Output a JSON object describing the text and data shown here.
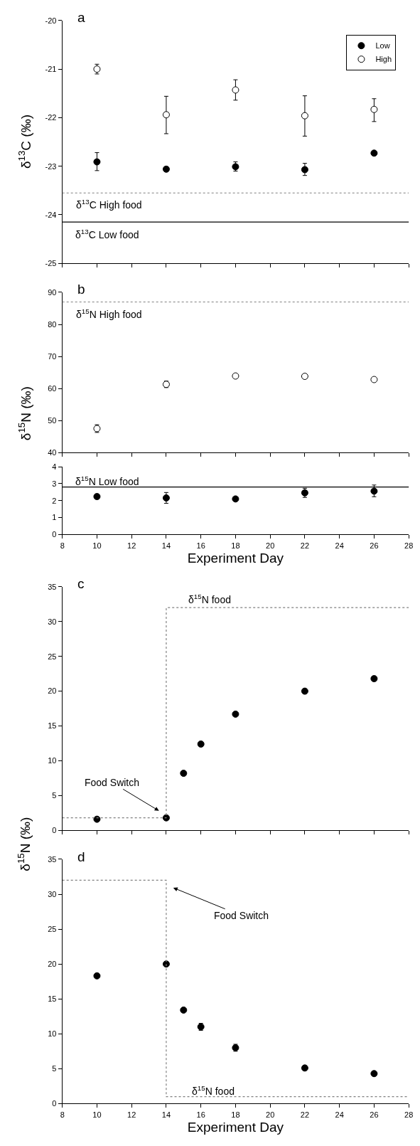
{
  "chart_data": [
    {
      "type": "scatter",
      "title": "a",
      "ylabel": "δ$^{13}$C (‰)",
      "x": [
        10,
        14,
        18,
        22,
        26
      ],
      "xlim": [
        8,
        28
      ],
      "xticks": [
        8,
        10,
        12,
        14,
        16,
        18,
        20,
        22,
        24,
        26,
        28
      ],
      "ylim": [
        -25,
        -20
      ],
      "yticks": [
        -25,
        -24,
        -23,
        -22,
        -21,
        -20
      ],
      "tick_labels": "y",
      "legend": "top right",
      "marker": "circle",
      "series": [
        {
          "name": "Low",
          "color": "#000000",
          "values": [
            -22.91,
            -23.06,
            -23.01,
            -23.07,
            -22.73
          ],
          "errors": [
            [
              -23.09,
              -22.72
            ],
            null,
            [
              -23.1,
              -22.91
            ],
            [
              -23.19,
              -22.94
            ],
            null
          ]
        },
        {
          "name": "High",
          "color": "#ffffff",
          "values": [
            -21.0,
            -21.94,
            -21.43,
            -21.96,
            -21.83
          ],
          "errors": [
            0.1,
            [
              -22.33,
              -21.56
            ],
            [
              -21.64,
              -21.22
            ],
            [
              -22.38,
              -21.55
            ],
            [
              -22.08,
              -21.61
            ]
          ]
        }
      ],
      "ref_lines": [
        {
          "axis": "y",
          "value": -23.55,
          "color": "#808080",
          "line_style": "dotted"
        },
        {
          "axis": "y",
          "value": -24.15,
          "color": "#000000",
          "line_style": "solid"
        }
      ],
      "annotations": [
        "δ$^{13}$C High food",
        "δ$^{13}$C Low food"
      ]
    },
    {
      "type": "scatter",
      "title": "b",
      "ylabel": "δ$^{15}$N (‰)",
      "x": [
        10,
        14,
        18,
        22,
        26
      ],
      "xlim": [
        8,
        28
      ],
      "xticks": [
        8,
        10,
        12,
        14,
        16,
        18,
        20,
        22,
        24,
        26,
        28
      ],
      "ylim": [
        40,
        90
      ],
      "yticks": [
        40,
        50,
        60,
        70,
        80,
        90
      ],
      "tick_labels": "y",
      "marker": "circle",
      "series": [
        {
          "color": "#ffffff",
          "values": [
            47.5,
            61.3,
            63.9,
            63.8,
            62.8
          ],
          "errors": [
            1.2,
            1.0,
            null,
            null,
            null
          ]
        }
      ],
      "ref_lines": [
        {
          "axis": "y",
          "value": 87,
          "color": "#808080",
          "line_style": "dotted"
        }
      ],
      "annotations": [
        "δ$^{15}$N High food"
      ]
    },
    {
      "type": "scatter",
      "xlabel": "Experiment Day",
      "x": [
        10,
        14,
        18,
        22,
        26
      ],
      "xlim": [
        8,
        28
      ],
      "xticks": [
        8,
        10,
        12,
        14,
        16,
        18,
        20,
        22,
        24,
        26,
        28
      ],
      "ylim": [
        0,
        4
      ],
      "yticks": [
        0,
        1,
        2,
        3,
        4
      ],
      "marker": "circle",
      "series": [
        {
          "color": "#000000",
          "values": [
            2.24,
            2.16,
            2.1,
            2.46,
            2.56
          ],
          "errors": [
            null,
            0.32,
            null,
            0.27,
            [
              2.23,
              2.92
            ]
          ]
        }
      ],
      "ref_lines": [
        {
          "axis": "y",
          "value": 2.8,
          "color": "#000000",
          "line_style": "solid"
        }
      ],
      "annotations": [
        "δ$^{15}$N Low food"
      ]
    },
    {
      "type": "scatter",
      "title": "c",
      "ylabel": "δ$^{15}$N (‰)",
      "xlim": [
        8,
        28
      ],
      "xticks": [
        8,
        10,
        12,
        14,
        16,
        18,
        20,
        22,
        24,
        26,
        28
      ],
      "ylim": [
        0,
        35
      ],
      "yticks": [
        0,
        5,
        10,
        15,
        20,
        25,
        30,
        35
      ],
      "tick_labels": "y",
      "series": [
        {
          "color": "#000000",
          "marker": "circle",
          "x": [
            10,
            14,
            15,
            16,
            18,
            22,
            26
          ],
          "values": [
            1.6,
            1.8,
            8.2,
            12.4,
            16.7,
            20.0,
            21.8
          ]
        },
        {
          "type": "step",
          "color": "#808080",
          "line_style": "dotted",
          "x": [
            8,
            14,
            28
          ],
          "values": [
            1.8,
            32,
            32
          ]
        }
      ],
      "annotations": [
        "δ$^{15}$N food",
        "Food Switch"
      ]
    },
    {
      "type": "scatter",
      "title": "d",
      "xlabel": "Experiment Day",
      "xlim": [
        8,
        28
      ],
      "xticks": [
        8,
        10,
        12,
        14,
        16,
        18,
        20,
        22,
        24,
        26,
        28
      ],
      "ylim": [
        0,
        35
      ],
      "yticks": [
        0,
        5,
        10,
        15,
        20,
        25,
        30,
        35
      ],
      "series": [
        {
          "color": "#000000",
          "marker": "circle",
          "x": [
            10,
            14,
            15,
            16,
            18,
            22,
            26
          ],
          "values": [
            18.3,
            20.0,
            13.4,
            11.0,
            8.0,
            5.1,
            4.3
          ],
          "errors": [
            null,
            null,
            null,
            0.5,
            0.5,
            null,
            null
          ]
        },
        {
          "type": "step",
          "color": "#808080",
          "line_style": "dotted",
          "x": [
            8,
            14,
            28
          ],
          "values": [
            32,
            1,
            1
          ]
        }
      ],
      "annotations": [
        "δ$^{15}$N food",
        "Food Switch"
      ]
    }
  ]
}
